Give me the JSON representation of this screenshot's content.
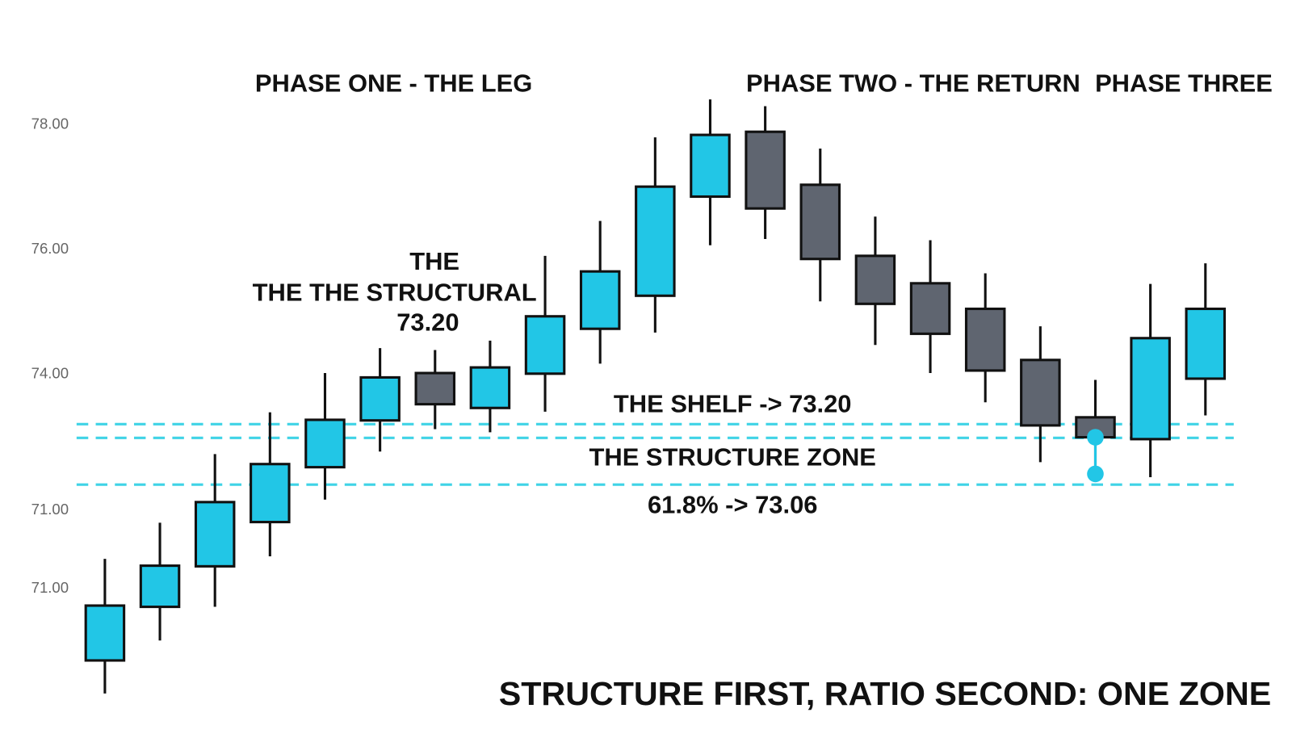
{
  "chart_data": {
    "type": "candlestick",
    "phases": [
      "PHASE ONE - THE LEG",
      "PHASE TWO - THE RETURN",
      "PHASE THREE"
    ],
    "annotations": {
      "structural": [
        "THE",
        "THE THE STRUCTURAL",
        "73.20"
      ],
      "shelf": "THE SHELF -> 73.20",
      "zone": "THE STRUCTURE ZONE",
      "ratio": "61.8% -> 73.06"
    },
    "footer": "STRUCTURE FIRST, RATIO SECOND: ONE ZONE",
    "ylim": [
      68.17,
      80
    ],
    "yticks": [
      {
        "value": 78,
        "label": "78.00"
      },
      {
        "value": 76,
        "label": "76.00"
      },
      {
        "value": 74,
        "label": "74.00"
      }
    ],
    "extra_axis_labels": [
      "71.00",
      "71.00"
    ],
    "open": [
      69.41,
      70.27,
      70.92,
      71.63,
      72.51,
      73.26,
      74.02,
      73.46,
      74.01,
      74.73,
      75.26,
      76.85,
      77.89,
      77.04,
      75.9,
      75.46,
      75.05,
      74.23,
      73.31,
      72.96,
      73.93
    ],
    "high": [
      71.04,
      71.62,
      72.72,
      73.39,
      74.02,
      74.42,
      74.39,
      74.54,
      75.9,
      76.46,
      77.8,
      78.41,
      78.3,
      77.62,
      76.53,
      76.15,
      75.62,
      74.77,
      73.91,
      75.45,
      75.78
    ],
    "low": [
      68.88,
      69.73,
      70.27,
      71.08,
      71.99,
      72.76,
      73.12,
      73.07,
      73.4,
      74.17,
      74.67,
      76.07,
      76.17,
      75.17,
      74.47,
      74.02,
      73.55,
      72.59,
      72.4,
      72.35,
      73.34
    ],
    "close": [
      70.29,
      70.93,
      71.95,
      72.56,
      73.27,
      73.95,
      73.52,
      74.11,
      74.93,
      75.65,
      77.01,
      77.84,
      76.66,
      75.85,
      75.13,
      74.65,
      74.06,
      73.18,
      72.99,
      74.58,
      75.05
    ],
    "levels": [
      73.2,
      72.98,
      72.23
    ],
    "up_color": "#22c6e6",
    "down_color": "#5f6570",
    "level_color": "#3fd3e6"
  }
}
